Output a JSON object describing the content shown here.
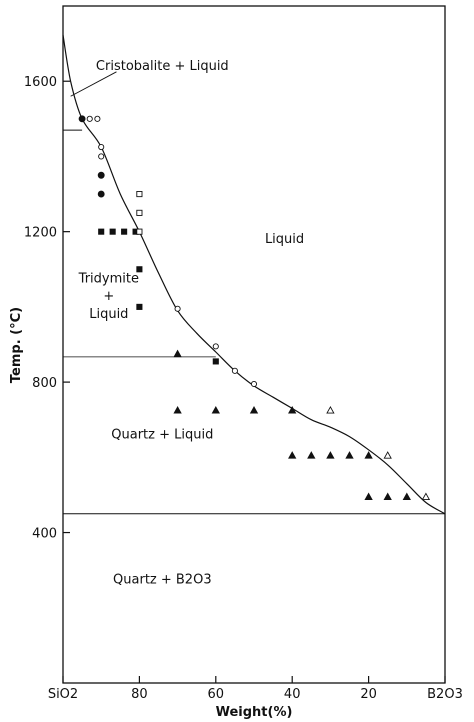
{
  "chart_data": {
    "type": "scatter",
    "ylabel": "Temp. (°C)",
    "xlabel": "Weight(%)",
    "xlim": [
      100,
      0
    ],
    "ylim": [
      0,
      1800
    ],
    "x_ticks": [
      {
        "value": 100,
        "label": "SiO2"
      },
      {
        "value": 80,
        "label": "80"
      },
      {
        "value": 60,
        "label": "60"
      },
      {
        "value": 40,
        "label": "40"
      },
      {
        "value": 20,
        "label": "20"
      },
      {
        "value": 0,
        "label": "B2O3"
      }
    ],
    "y_ticks": [
      {
        "value": 400,
        "label": "400"
      },
      {
        "value": 800,
        "label": "800"
      },
      {
        "value": 1200,
        "label": "1200"
      },
      {
        "value": 1600,
        "label": "1600"
      }
    ],
    "liquidus_curve": [
      [
        100,
        1723
      ],
      [
        98,
        1600
      ],
      [
        95,
        1500
      ],
      [
        90,
        1425
      ],
      [
        85,
        1300
      ],
      [
        80,
        1200
      ],
      [
        75,
        1090
      ],
      [
        70,
        990
      ],
      [
        65,
        930
      ],
      [
        60,
        880
      ],
      [
        55,
        830
      ],
      [
        50,
        790
      ],
      [
        45,
        760
      ],
      [
        40,
        730
      ],
      [
        35,
        700
      ],
      [
        30,
        680
      ],
      [
        25,
        655
      ],
      [
        20,
        620
      ],
      [
        15,
        580
      ],
      [
        10,
        530
      ],
      [
        5,
        480
      ],
      [
        0,
        450
      ]
    ],
    "boundaries": [
      {
        "name": "cristobalite-tridymite",
        "y": 1470,
        "x_from": 100,
        "x_to": 95
      },
      {
        "name": "tridymite-quartz",
        "y": 867,
        "x_from": 100,
        "x_to": 60
      },
      {
        "name": "eutectic",
        "y": 450,
        "x_from": 100,
        "x_to": 0
      }
    ],
    "points": [
      {
        "marker": "filled-circle",
        "x": 95,
        "y": 1500
      },
      {
        "marker": "open-circle",
        "x": 93,
        "y": 1500
      },
      {
        "marker": "open-circle",
        "x": 91,
        "y": 1500
      },
      {
        "marker": "open-circle",
        "x": 90,
        "y": 1425
      },
      {
        "marker": "open-circle",
        "x": 90,
        "y": 1400
      },
      {
        "marker": "filled-circle",
        "x": 90,
        "y": 1350
      },
      {
        "marker": "filled-circle",
        "x": 90,
        "y": 1300
      },
      {
        "marker": "open-square",
        "x": 80,
        "y": 1300
      },
      {
        "marker": "open-square",
        "x": 80,
        "y": 1250
      },
      {
        "marker": "filled-square",
        "x": 90,
        "y": 1200
      },
      {
        "marker": "filled-square",
        "x": 87,
        "y": 1200
      },
      {
        "marker": "filled-square",
        "x": 84,
        "y": 1200
      },
      {
        "marker": "filled-square",
        "x": 81,
        "y": 1200
      },
      {
        "marker": "open-square",
        "x": 80,
        "y": 1200
      },
      {
        "marker": "filled-square",
        "x": 80,
        "y": 1100
      },
      {
        "marker": "filled-square",
        "x": 80,
        "y": 1000
      },
      {
        "marker": "open-circle",
        "x": 70,
        "y": 995
      },
      {
        "marker": "open-circle",
        "x": 60,
        "y": 895
      },
      {
        "marker": "filled-triangle",
        "x": 70,
        "y": 875
      },
      {
        "marker": "filled-square",
        "x": 60,
        "y": 855
      },
      {
        "marker": "open-circle",
        "x": 55,
        "y": 830
      },
      {
        "marker": "open-circle",
        "x": 50,
        "y": 795
      },
      {
        "marker": "filled-triangle",
        "x": 70,
        "y": 725
      },
      {
        "marker": "filled-triangle",
        "x": 60,
        "y": 725
      },
      {
        "marker": "filled-triangle",
        "x": 50,
        "y": 725
      },
      {
        "marker": "filled-triangle",
        "x": 40,
        "y": 725
      },
      {
        "marker": "open-triangle",
        "x": 30,
        "y": 725
      },
      {
        "marker": "filled-triangle",
        "x": 40,
        "y": 605
      },
      {
        "marker": "filled-triangle",
        "x": 35,
        "y": 605
      },
      {
        "marker": "filled-triangle",
        "x": 30,
        "y": 605
      },
      {
        "marker": "filled-triangle",
        "x": 25,
        "y": 605
      },
      {
        "marker": "filled-triangle",
        "x": 20,
        "y": 605
      },
      {
        "marker": "open-triangle",
        "x": 15,
        "y": 605
      },
      {
        "marker": "filled-triangle",
        "x": 20,
        "y": 495
      },
      {
        "marker": "filled-triangle",
        "x": 15,
        "y": 495
      },
      {
        "marker": "filled-triangle",
        "x": 10,
        "y": 495
      },
      {
        "marker": "open-triangle",
        "x": 5,
        "y": 495
      }
    ],
    "region_labels": [
      {
        "text": "Cristobalite + Liquid",
        "x": 74,
        "y": 1630
      },
      {
        "text": "Liquid",
        "x": 42,
        "y": 1170
      },
      {
        "text": "Tridymite",
        "x": 88,
        "y": 1065
      },
      {
        "text": "+",
        "x": 88,
        "y": 1018
      },
      {
        "text": "Liquid",
        "x": 88,
        "y": 970
      },
      {
        "text": "Quartz + Liquid",
        "x": 74,
        "y": 650
      },
      {
        "text": "Quartz + B2O3",
        "x": 74,
        "y": 265
      }
    ]
  }
}
